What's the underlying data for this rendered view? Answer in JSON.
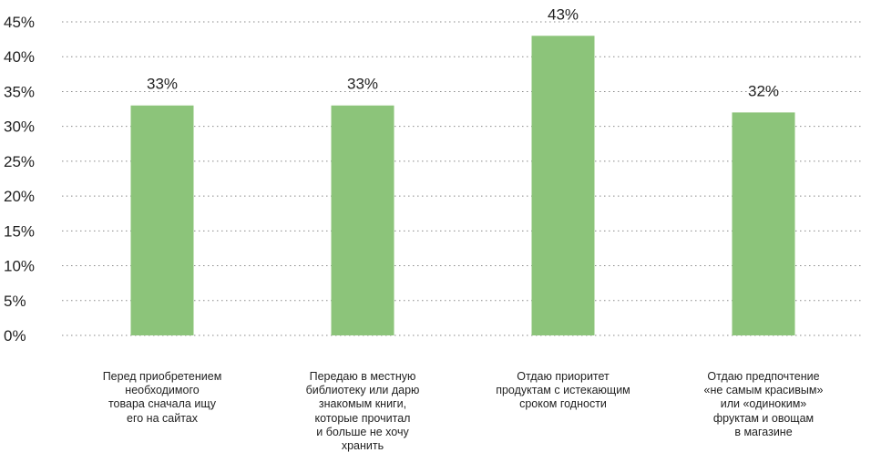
{
  "chart_data": {
    "type": "bar",
    "categories": [
      "Перед приобретением\nнеобходимого\nтовара сначала ищу\nего на сайтах",
      "Передаю в местную\nбиблиотеку или дарю\nзнакомым книги,\nкоторые прочитал\nи больше не хочу\nхранить",
      "Отдаю приоритет\nпродуктам с истекающим\nсроком годности",
      "Отдаю предпочтение\n«не самым красивым»\nили «одиноким»\nфруктам и овощам\nв магазине"
    ],
    "values": [
      33,
      33,
      43,
      32
    ],
    "data_labels": [
      "33%",
      "33%",
      "43%",
      "32%"
    ],
    "yticks": [
      "0%",
      "5%",
      "10%",
      "15%",
      "20%",
      "25%",
      "30%",
      "35%",
      "40%",
      "45%"
    ],
    "ylim": [
      0,
      45
    ],
    "grid": true,
    "bar_color": "#8cc47a",
    "title": "",
    "xlabel": "",
    "ylabel": ""
  }
}
